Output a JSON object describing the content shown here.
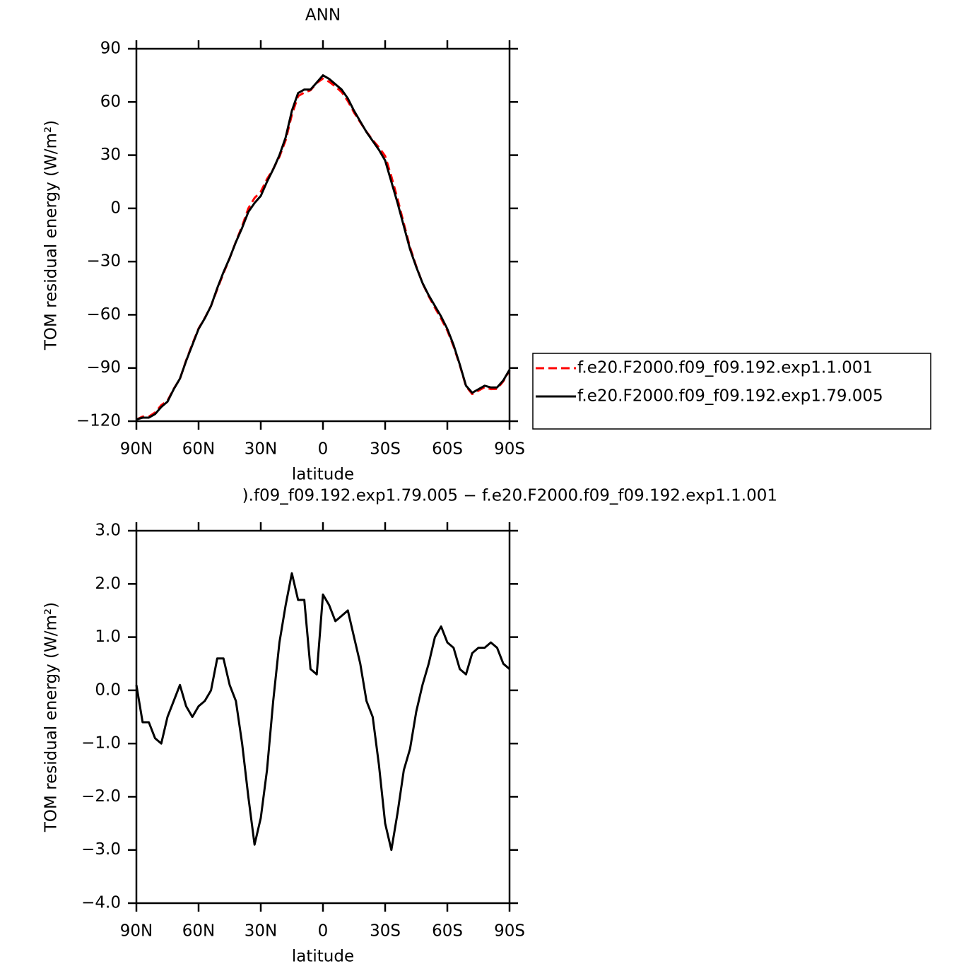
{
  "chart_data": [
    {
      "type": "line",
      "title": "ANN",
      "xlabel": "latitude",
      "ylabel": "TOM residual energy (W/m²)",
      "x": [
        90,
        87,
        84,
        81,
        78,
        75,
        72,
        69,
        66,
        63,
        60,
        57,
        54,
        51,
        48,
        45,
        42,
        39,
        36,
        33,
        30,
        27,
        24,
        21,
        18,
        15,
        12,
        9,
        6,
        3,
        0,
        -3,
        -6,
        -9,
        -12,
        -15,
        -18,
        -21,
        -24,
        -27,
        -30,
        -33,
        -36,
        -39,
        -42,
        -45,
        -48,
        -51,
        -54,
        -57,
        -60,
        -63,
        -66,
        -69,
        -72,
        -75,
        -78,
        -81,
        -84,
        -87,
        -90
      ],
      "series": [
        {
          "name": "f.e20.F2000.f09_f09.192.exp1.1.001",
          "color": "#ff0000",
          "dashed": true,
          "values": [
            -119.1,
            -117.4,
            -117.4,
            -115.1,
            -111.0,
            -108.5,
            -101.8,
            -96.1,
            -85.7,
            -76.5,
            -67.7,
            -61.8,
            -55.0,
            -45.6,
            -36.6,
            -28.1,
            -18.8,
            -10.0,
            0.0,
            5.9,
            9.4,
            16.5,
            22.2,
            29.1,
            38.4,
            52.8,
            63.3,
            65.3,
            66.6,
            70.7,
            73.2,
            71.4,
            68.7,
            65.6,
            60.5,
            54.0,
            48.5,
            43.2,
            38.5,
            34.4,
            29.5,
            18.0,
            5.3,
            -8.5,
            -21.9,
            -32.6,
            -42.1,
            -49.5,
            -56.0,
            -62.2,
            -68.9,
            -77.8,
            -88.4,
            -100.3,
            -104.7,
            -102.8,
            -100.8,
            -101.9,
            -101.8,
            -97.5,
            -91.4
          ]
        },
        {
          "name": "f.e20.F2000.f09_f09.192.exp1.79.005",
          "color": "#000000",
          "dashed": false,
          "values": [
            -119,
            -118,
            -118,
            -116,
            -112,
            -109,
            -102,
            -96,
            -86,
            -77,
            -68,
            -62,
            -55,
            -45,
            -36,
            -28,
            -19,
            -11,
            -2,
            3,
            7,
            15,
            22,
            30,
            40,
            55,
            65,
            67,
            67,
            71,
            75,
            73,
            70,
            67,
            62,
            55,
            49,
            43,
            38,
            33,
            27,
            15,
            3,
            -10,
            -23,
            -33,
            -42,
            -49,
            -55,
            -61,
            -68,
            -77,
            -88,
            -100,
            -104,
            -102,
            -100,
            -101,
            -101,
            -97,
            -91
          ]
        }
      ],
      "xlim": [
        90,
        -90
      ],
      "xticks": [
        {
          "value": 90,
          "label": "90N"
        },
        {
          "value": 60,
          "label": "60N"
        },
        {
          "value": 30,
          "label": "30N"
        },
        0,
        {
          "value": -30,
          "label": "30S"
        },
        {
          "value": -60,
          "label": "60S"
        },
        {
          "value": -90,
          "label": "90S"
        }
      ],
      "ylim": [
        -120,
        90
      ],
      "yticks": [
        {
          "value": -120,
          "label": "−120"
        },
        {
          "value": -90,
          "label": "−90"
        },
        {
          "value": -60,
          "label": "−60"
        },
        {
          "value": -30,
          "label": "−30"
        },
        0,
        30,
        60,
        90
      ],
      "legend": "right"
    },
    {
      "type": "line",
      "title": ").f09_f09.192.exp1.79.005 − f.e20.F2000.f09_f09.192.exp1.1.001",
      "xlabel": "latitude",
      "ylabel": "TOM residual energy (W/m²)",
      "x": [
        90,
        87,
        84,
        81,
        78,
        75,
        72,
        69,
        66,
        63,
        60,
        57,
        54,
        51,
        48,
        45,
        42,
        39,
        36,
        33,
        30,
        27,
        24,
        21,
        18,
        15,
        12,
        9,
        6,
        3,
        0,
        -3,
        -6,
        -9,
        -12,
        -15,
        -18,
        -21,
        -24,
        -27,
        -30,
        -33,
        -36,
        -39,
        -42,
        -45,
        -48,
        -51,
        -54,
        -57,
        -60,
        -63,
        -66,
        -69,
        -72,
        -75,
        -78,
        -81,
        -84,
        -87,
        -90
      ],
      "series": [
        {
          "color": "#000000",
          "dashed": false,
          "values": [
            0.1,
            -0.6,
            -0.6,
            -0.9,
            -1.0,
            -0.5,
            -0.2,
            0.1,
            -0.3,
            -0.5,
            -0.3,
            -0.2,
            0.0,
            0.6,
            0.6,
            0.1,
            -0.2,
            -1.0,
            -2.0,
            -2.9,
            -2.4,
            -1.5,
            -0.2,
            0.9,
            1.6,
            2.2,
            1.7,
            1.7,
            0.4,
            0.3,
            1.8,
            1.6,
            1.3,
            1.4,
            1.5,
            1.0,
            0.5,
            -0.2,
            -0.5,
            -1.4,
            -2.5,
            -3.0,
            -2.3,
            -1.5,
            -1.1,
            -0.4,
            0.1,
            0.5,
            1.0,
            1.2,
            0.9,
            0.8,
            0.4,
            0.3,
            0.7,
            0.8,
            0.8,
            0.9,
            0.8,
            0.5,
            0.4
          ]
        }
      ],
      "xlim": [
        90,
        -90
      ],
      "xticks": [
        {
          "value": 90,
          "label": "90N"
        },
        {
          "value": 60,
          "label": "60N"
        },
        {
          "value": 30,
          "label": "30N"
        },
        0,
        {
          "value": -30,
          "label": "30S"
        },
        {
          "value": -60,
          "label": "60S"
        },
        {
          "value": -90,
          "label": "90S"
        }
      ],
      "ylim": [
        -4,
        3
      ],
      "yticks": [
        {
          "value": -4,
          "label": "−4.0"
        },
        {
          "value": -3,
          "label": "−3.0"
        },
        {
          "value": -2,
          "label": "−2.0"
        },
        {
          "value": -1,
          "label": "−1.0"
        },
        {
          "value": 0,
          "label": "0.0"
        },
        {
          "value": 1,
          "label": "1.0"
        },
        {
          "value": 2,
          "label": "2.0"
        },
        {
          "value": 3,
          "label": "3.0"
        }
      ]
    }
  ]
}
